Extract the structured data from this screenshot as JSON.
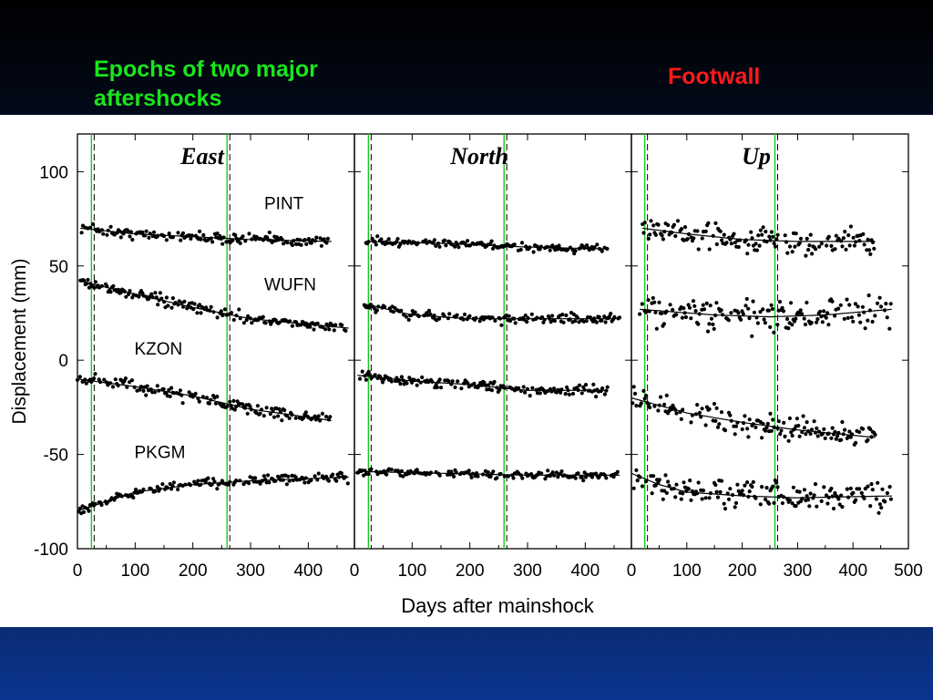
{
  "slide": {
    "annotation_epochs": "Epochs of two major aftershocks",
    "annotation_footwall": "Footwall",
    "colors": {
      "annotation_epochs": "#19e619",
      "annotation_footwall": "#ff1a1a",
      "background_dark": "#05173e",
      "background_blue": "#0a3490",
      "aftershock_lines": "#19c819"
    }
  },
  "chart_data": {
    "type": "scatter",
    "xlabel": "Days after mainshock",
    "ylabel": "Displacement (mm)",
    "ylim": [
      -100,
      120
    ],
    "yticks": [
      100,
      50,
      0,
      -50,
      -100
    ],
    "grid": false,
    "aftershock_epochs_days": [
      29,
      264
    ],
    "panels": [
      {
        "title": "East",
        "xlim": [
          0,
          480
        ],
        "xticks": [
          0,
          100,
          200,
          300,
          400
        ],
        "series": [
          {
            "name": "PINT",
            "label_at": [
              330,
              80
            ],
            "start_day": 5,
            "end_day": 440,
            "fit": [
              [
                5,
                70
              ],
              [
                100,
                67
              ],
              [
                200,
                65.5
              ],
              [
                300,
                64
              ],
              [
                440,
                63
              ]
            ],
            "scatter_mm": 2
          },
          {
            "name": "WUFN",
            "label_at": [
              330,
              37
            ],
            "start_day": 5,
            "end_day": 470,
            "fit": [
              [
                5,
                42
              ],
              [
                100,
                35
              ],
              [
                200,
                28
              ],
              [
                300,
                22
              ],
              [
                400,
                19
              ],
              [
                470,
                17
              ]
            ],
            "scatter_mm": 2
          },
          {
            "name": "KZON",
            "label_at": [
              105,
              3
            ],
            "start_day": 0,
            "end_day": 440,
            "fit": [
              [
                0,
                -10
              ],
              [
                100,
                -14
              ],
              [
                200,
                -19
              ],
              [
                300,
                -26
              ],
              [
                440,
                -32
              ]
            ],
            "scatter_mm": 2.5
          },
          {
            "name": "PKGM",
            "label_at": [
              105,
              -52
            ],
            "start_day": 0,
            "end_day": 470,
            "fit": [
              [
                0,
                -80
              ],
              [
                50,
                -75
              ],
              [
                100,
                -70
              ],
              [
                200,
                -66
              ],
              [
                300,
                -64
              ],
              [
                470,
                -62
              ]
            ],
            "scatter_mm": 1.8
          }
        ]
      },
      {
        "title": "North",
        "xlim": [
          0,
          480
        ],
        "xticks": [
          0,
          100,
          200,
          300,
          400
        ],
        "series": [
          {
            "name": "",
            "start_day": 20,
            "end_day": 440,
            "fit": [
              [
                20,
                63
              ],
              [
                150,
                62
              ],
              [
                300,
                60
              ],
              [
                440,
                59
              ]
            ],
            "scatter_mm": 1.5
          },
          {
            "name": "",
            "start_day": 15,
            "end_day": 460,
            "fit": [
              [
                15,
                30
              ],
              [
                100,
                24
              ],
              [
                200,
                22
              ],
              [
                300,
                22
              ],
              [
                460,
                22
              ]
            ],
            "scatter_mm": 1.8
          },
          {
            "name": "",
            "start_day": 5,
            "end_day": 440,
            "fit": [
              [
                5,
                -8
              ],
              [
                100,
                -11
              ],
              [
                200,
                -13
              ],
              [
                300,
                -16
              ],
              [
                440,
                -16
              ]
            ],
            "scatter_mm": 1.8
          },
          {
            "name": "",
            "start_day": 5,
            "end_day": 460,
            "fit": [
              [
                5,
                -59
              ],
              [
                150,
                -60
              ],
              [
                300,
                -61
              ],
              [
                460,
                -61
              ]
            ],
            "scatter_mm": 1.5
          }
        ]
      },
      {
        "title": "Up",
        "xlim": [
          0,
          500
        ],
        "xticks": [
          0,
          100,
          200,
          300,
          400,
          500
        ],
        "series": [
          {
            "name": "",
            "start_day": 20,
            "end_day": 440,
            "fit": [
              [
                20,
                70
              ],
              [
                100,
                67
              ],
              [
                200,
                64
              ],
              [
                300,
                63
              ],
              [
                440,
                63
              ]
            ],
            "scatter_mm": 5
          },
          {
            "name": "",
            "start_day": 15,
            "end_day": 470,
            "fit": [
              [
                15,
                27
              ],
              [
                150,
                24
              ],
              [
                250,
                23
              ],
              [
                350,
                24
              ],
              [
                470,
                27
              ]
            ],
            "scatter_mm": 6
          },
          {
            "name": "",
            "start_day": 0,
            "end_day": 440,
            "fit": [
              [
                0,
                -20
              ],
              [
                100,
                -28
              ],
              [
                200,
                -33
              ],
              [
                300,
                -37
              ],
              [
                440,
                -41
              ]
            ],
            "scatter_mm": 4.5
          },
          {
            "name": "",
            "start_day": 0,
            "end_day": 470,
            "fit": [
              [
                0,
                -60
              ],
              [
                50,
                -66
              ],
              [
                100,
                -70
              ],
              [
                200,
                -72
              ],
              [
                300,
                -73
              ],
              [
                470,
                -72
              ]
            ],
            "scatter_mm": 5
          }
        ]
      }
    ]
  }
}
